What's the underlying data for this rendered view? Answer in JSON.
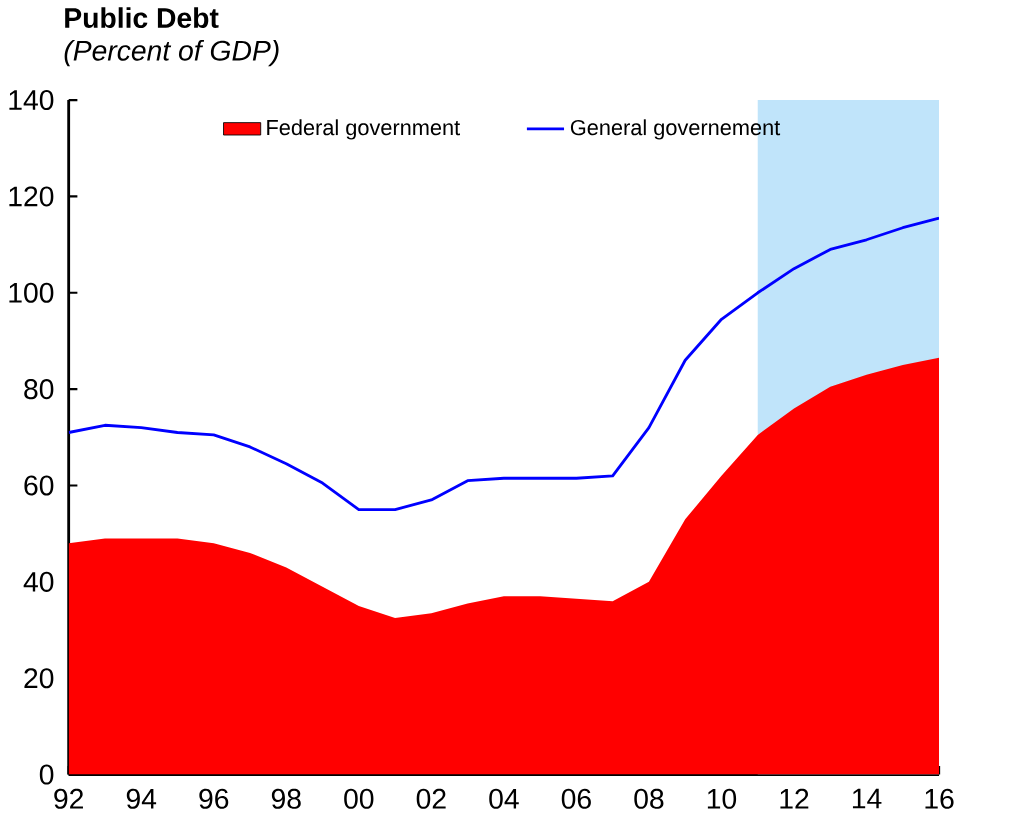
{
  "chart_data": {
    "type": "area",
    "title": "Public Debt",
    "subtitle": "(Percent of GDP)",
    "x": [
      1992,
      1993,
      1994,
      1995,
      1996,
      1997,
      1998,
      1999,
      2000,
      2001,
      2002,
      2003,
      2004,
      2005,
      2006,
      2007,
      2008,
      2009,
      2010,
      2011,
      2012,
      2013,
      2014,
      2015,
      2016
    ],
    "series": [
      {
        "name": "Federal government",
        "color": "#ff0000",
        "values": [
          48,
          49,
          49,
          49,
          48,
          46,
          43,
          39,
          35,
          32.5,
          33.5,
          35.5,
          37,
          37,
          36.5,
          36,
          40,
          53,
          62,
          70.5,
          76,
          80.5,
          83,
          85,
          86.5
        ]
      },
      {
        "name": "General governement",
        "type": "line",
        "color": "#0000ff",
        "values": [
          71,
          72.5,
          72,
          71,
          70.5,
          68,
          64.5,
          60.5,
          55,
          55,
          57,
          61,
          61.5,
          61.5,
          61.5,
          62,
          72,
          86,
          94.5,
          100,
          105,
          109,
          111,
          113.5,
          115.5
        ]
      }
    ],
    "xlim": [
      1992,
      2016
    ],
    "ylim": [
      0,
      140
    ],
    "xticks": [
      {
        "value": 1992,
        "label": "92"
      },
      {
        "value": 1994,
        "label": "94"
      },
      {
        "value": 1996,
        "label": "96"
      },
      {
        "value": 1998,
        "label": "98"
      },
      {
        "value": 2000,
        "label": "00"
      },
      {
        "value": 2002,
        "label": "02"
      },
      {
        "value": 2004,
        "label": "04"
      },
      {
        "value": 2006,
        "label": "06"
      },
      {
        "value": 2008,
        "label": "08"
      },
      {
        "value": 2010,
        "label": "10"
      },
      {
        "value": 2012,
        "label": "12"
      },
      {
        "value": 2014,
        "label": "14"
      },
      {
        "value": 2016,
        "label": "16"
      }
    ],
    "yticks": [
      0,
      20,
      40,
      60,
      80,
      100,
      120,
      140
    ],
    "bands": [
      {
        "axis": "x",
        "from": 2011,
        "to": 2016,
        "color": "#c0e4fa"
      }
    ],
    "legend": "top",
    "grid": false
  }
}
